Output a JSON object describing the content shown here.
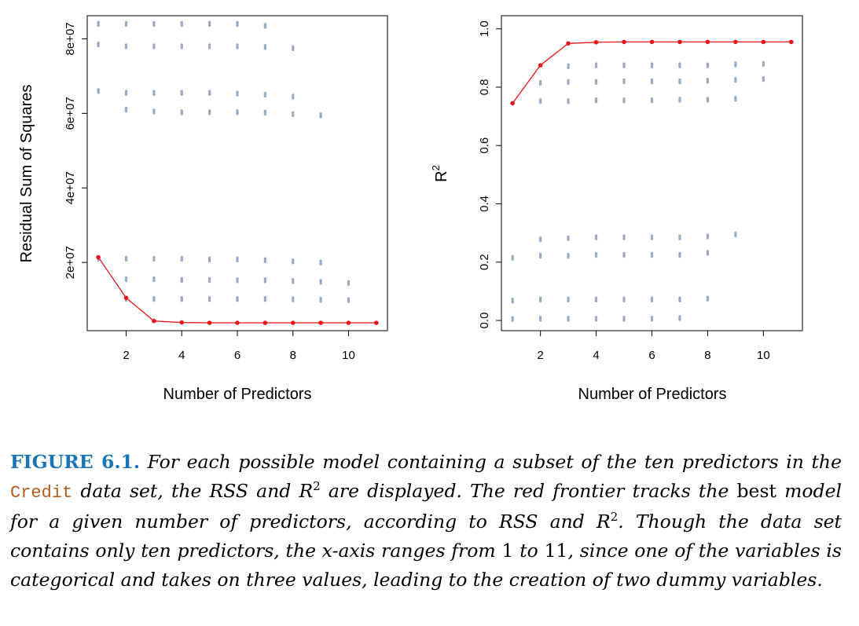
{
  "colors": {
    "points": "#9aabc4",
    "frontier": "#e8141a",
    "caption_label": "#1a75b8",
    "caption_code": "#b05a1c"
  },
  "chart_data": [
    {
      "type": "scatter",
      "xlabel": "Number of Predictors",
      "ylabel": "Residual Sum of Squares",
      "xlim": [
        0.6,
        11.4
      ],
      "ylim": [
        1700000,
        86200000
      ],
      "x_ticks": [
        2,
        4,
        6,
        8,
        10
      ],
      "y_ticks": [
        20000000,
        40000000,
        60000000,
        80000000
      ],
      "x_tick_labels": [
        "2",
        "4",
        "6",
        "8",
        "10"
      ],
      "y_tick_labels": [
        "2e+07",
        "4e+07",
        "6e+07",
        "8e+07"
      ],
      "grid": false,
      "series": [
        {
          "role": "all-models",
          "clusters": [
            {
              "x": 1,
              "y": [
                84000000,
                78500000,
                66000000,
                21000000
              ]
            },
            {
              "x": 2,
              "y": [
                84000000,
                78000000,
                65500000,
                61000000,
                21000000,
                15500000,
                10200000
              ]
            },
            {
              "x": 3,
              "y": [
                84000000,
                78000000,
                65500000,
                60500000,
                21000000,
                15500000,
                10200000
              ]
            },
            {
              "x": 4,
              "y": [
                84000000,
                78000000,
                65500000,
                60300000,
                21000000,
                15300000,
                10200000
              ]
            },
            {
              "x": 5,
              "y": [
                84000000,
                78000000,
                65500000,
                60300000,
                20800000,
                15300000,
                10200000
              ]
            },
            {
              "x": 6,
              "y": [
                84000000,
                78000000,
                65300000,
                60300000,
                20800000,
                15200000,
                10200000
              ]
            },
            {
              "x": 7,
              "y": [
                83500000,
                77800000,
                65000000,
                60200000,
                20600000,
                15200000,
                10200000
              ]
            },
            {
              "x": 8,
              "y": [
                77500000,
                64500000,
                59800000,
                20300000,
                15000000,
                10100000
              ]
            },
            {
              "x": 9,
              "y": [
                59500000,
                20000000,
                14800000,
                10000000
              ]
            },
            {
              "x": 10,
              "y": [
                14500000,
                9900000
              ]
            }
          ]
        },
        {
          "role": "best-model-frontier",
          "x": [
            1,
            2,
            3,
            4,
            5,
            6,
            7,
            8,
            9,
            10,
            11
          ],
          "y": [
            21400000,
            10500000,
            4300000,
            3900000,
            3800000,
            3800000,
            3800000,
            3800000,
            3800000,
            3800000,
            3800000
          ]
        }
      ]
    },
    {
      "type": "scatter",
      "xlabel": "Number of Predictors",
      "ylabel": "R",
      "ylabel_sup": "2",
      "xlim": [
        0.6,
        11.4
      ],
      "ylim": [
        -0.035,
        1.045
      ],
      "x_ticks": [
        2,
        4,
        6,
        8,
        10
      ],
      "y_ticks": [
        0.0,
        0.2,
        0.4,
        0.6,
        0.8,
        1.0
      ],
      "x_tick_labels": [
        "2",
        "4",
        "6",
        "8",
        "10"
      ],
      "y_tick_labels": [
        "0.0",
        "0.2",
        "0.4",
        "0.6",
        "0.8",
        "1.0"
      ],
      "grid": false,
      "series": [
        {
          "role": "all-models",
          "clusters": [
            {
              "x": 1,
              "y": [
                0.005,
                0.068,
                0.215
              ]
            },
            {
              "x": 2,
              "y": [
                0.006,
                0.072,
                0.222,
                0.278,
                0.752,
                0.815
              ]
            },
            {
              "x": 3,
              "y": [
                0.006,
                0.072,
                0.222,
                0.282,
                0.752,
                0.818,
                0.872
              ]
            },
            {
              "x": 4,
              "y": [
                0.006,
                0.072,
                0.225,
                0.285,
                0.755,
                0.818,
                0.875
              ]
            },
            {
              "x": 5,
              "y": [
                0.006,
                0.072,
                0.225,
                0.285,
                0.755,
                0.82,
                0.875
              ]
            },
            {
              "x": 6,
              "y": [
                0.006,
                0.072,
                0.225,
                0.285,
                0.755,
                0.82,
                0.875
              ]
            },
            {
              "x": 7,
              "y": [
                0.008,
                0.072,
                0.225,
                0.285,
                0.757,
                0.82,
                0.875
              ]
            },
            {
              "x": 8,
              "y": [
                0.075,
                0.232,
                0.288,
                0.757,
                0.822,
                0.875
              ]
            },
            {
              "x": 9,
              "y": [
                0.295,
                0.76,
                0.825,
                0.878
              ]
            },
            {
              "x": 10,
              "y": [
                0.828,
                0.88
              ]
            }
          ]
        },
        {
          "role": "best-model-frontier",
          "x": [
            1,
            2,
            3,
            4,
            5,
            6,
            7,
            8,
            9,
            10,
            11
          ],
          "y": [
            0.745,
            0.875,
            0.95,
            0.954,
            0.955,
            0.955,
            0.955,
            0.955,
            0.955,
            0.955,
            0.955
          ]
        }
      ]
    }
  ],
  "caption": {
    "label": "FIGURE 6.1.",
    "seg1": "For each possible model containing a subset of the ten predictors in the",
    "code": "Credit",
    "seg2": "data set, the RSS and",
    "r": "R",
    "sup": "2",
    "seg3": "are displayed. The red frontier tracks the",
    "seg4": "best",
    "seg5": "model for a given number of predictors, according to RSS and",
    "seg6": ". Though the data set contains only ten predictors, the x-axis ranges from",
    "num1": "1",
    "seg7": "to",
    "num2": "11",
    "seg8": ", since one of the variables is categorical and takes on three values, leading to the creation of two dummy variables."
  }
}
